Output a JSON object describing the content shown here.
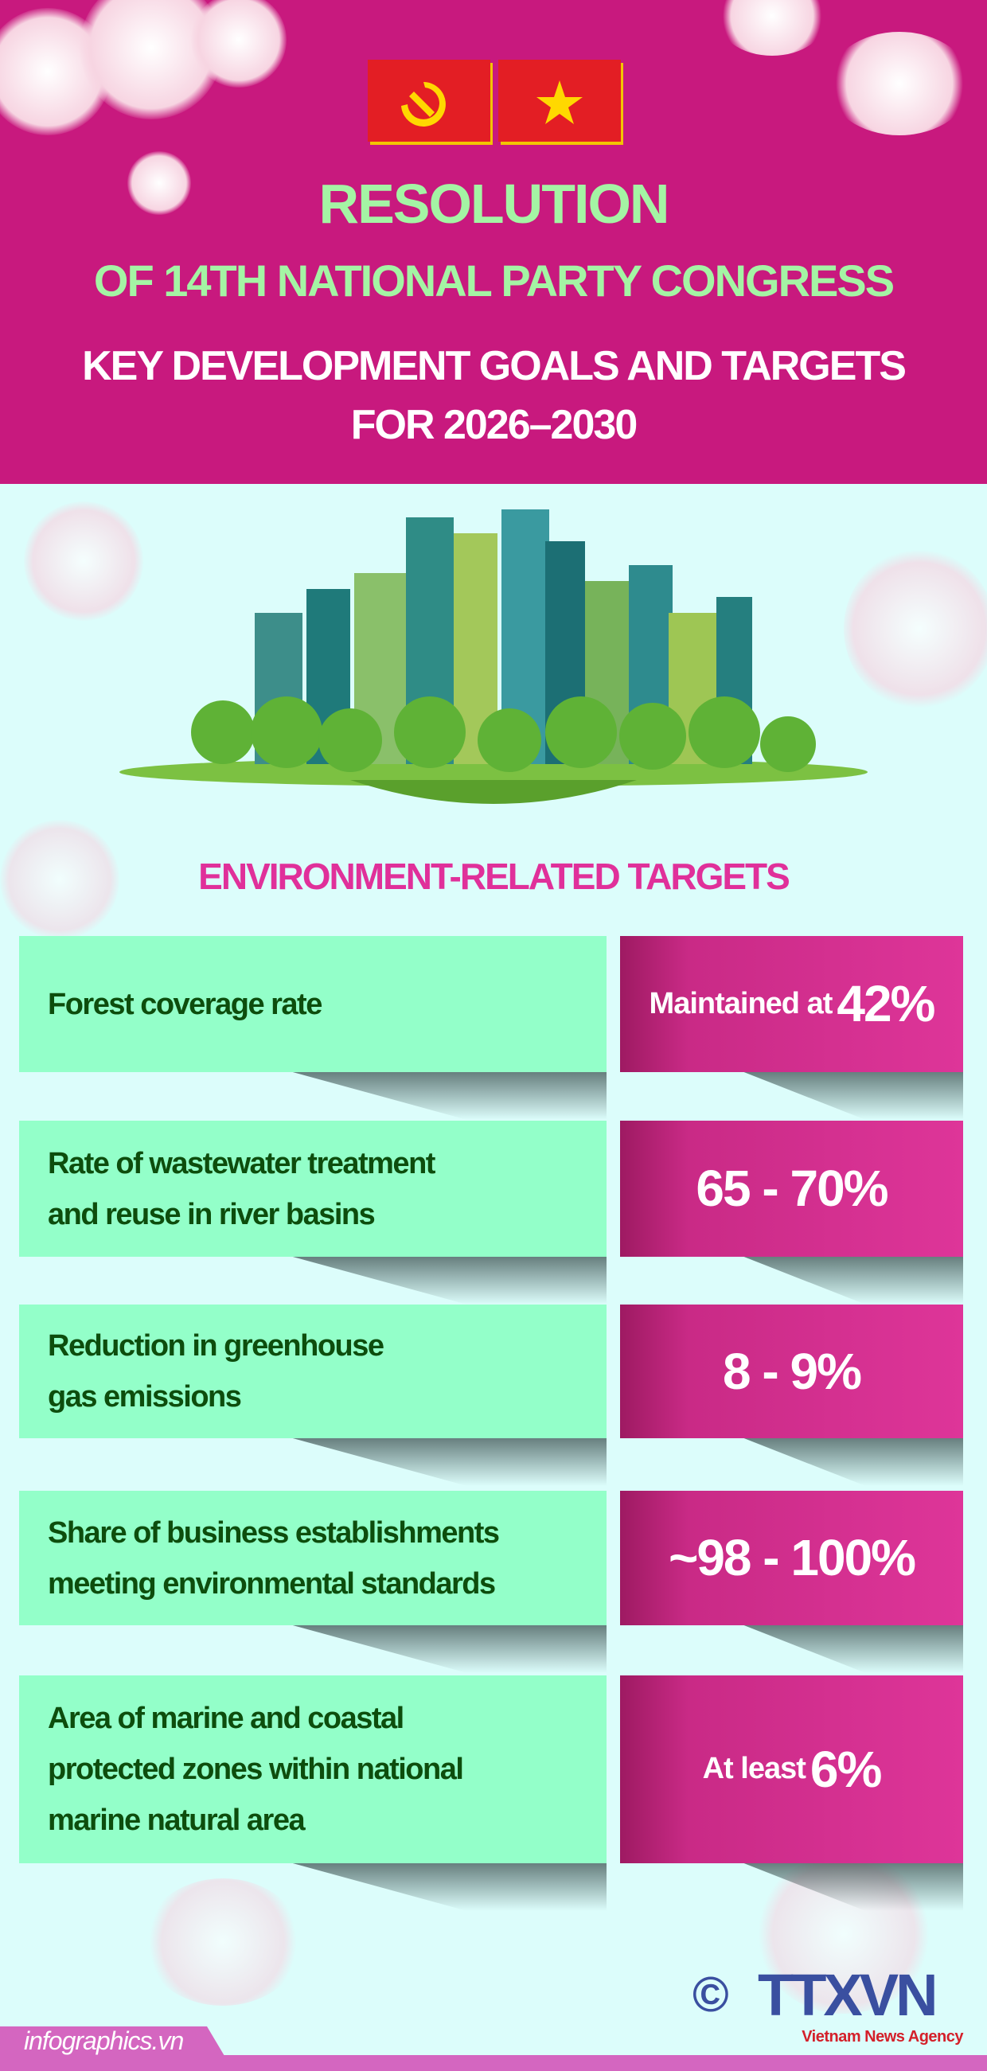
{
  "header": {
    "title_line1": "RESOLUTION",
    "title_line2": "OF 14TH NATIONAL PARTY CONGRESS",
    "title_line3": "KEY DEVELOPMENT GOALS AND TARGETS",
    "title_line4": "FOR 2026–2030",
    "flags": [
      "party-flag-icon",
      "vietnam-flag-icon"
    ]
  },
  "section_title": "ENVIRONMENT-RELATED TARGETS",
  "targets": [
    {
      "label_lines": [
        "Forest coverage rate"
      ],
      "value_prefix": "Maintained at",
      "value": "42%"
    },
    {
      "label_lines": [
        "Rate of wastewater treatment",
        "and reuse in river basins"
      ],
      "value_prefix": "",
      "value": "65 - 70%"
    },
    {
      "label_lines": [
        "Reduction in greenhouse",
        "gas emissions"
      ],
      "value_prefix": "",
      "value": "8 - 9%"
    },
    {
      "label_lines": [
        "Share of business establishments",
        "meeting environmental standards"
      ],
      "value_prefix": "",
      "value": "~98 - 100%"
    },
    {
      "label_lines": [
        "Area of marine and coastal",
        "protected zones within national",
        "marine natural area"
      ],
      "value_prefix": "At least",
      "value": "6%"
    }
  ],
  "footer": {
    "site": "infographics.vn",
    "copyright": "©",
    "agency_logo": "TTXVN",
    "agency_name": "Vietnam News Agency"
  },
  "colors": {
    "header_bg": "#c8197e",
    "title_green": "#a4f4a4",
    "label_bg": "#93ffc9",
    "value_bg": "#de3599",
    "page_bg": "#dcfdfb",
    "section_title": "#e0309a"
  }
}
